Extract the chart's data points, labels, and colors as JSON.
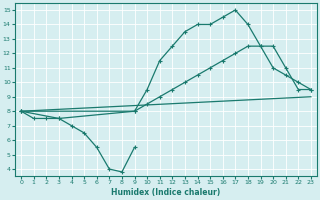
{
  "xlabel": "Humidex (Indice chaleur)",
  "background_color": "#d6eef0",
  "line_color": "#1a7a6e",
  "xlim": [
    -0.5,
    23.5
  ],
  "ylim": [
    3.5,
    15.5
  ],
  "xticks": [
    0,
    1,
    2,
    3,
    4,
    5,
    6,
    7,
    8,
    9,
    10,
    11,
    12,
    13,
    14,
    15,
    16,
    17,
    18,
    19,
    20,
    21,
    22,
    23
  ],
  "yticks": [
    4,
    5,
    6,
    7,
    8,
    9,
    10,
    11,
    12,
    13,
    14,
    15
  ],
  "line1_x": [
    0,
    1,
    2,
    3,
    4,
    5,
    6,
    7,
    8,
    9
  ],
  "line1_y": [
    8,
    7.5,
    7.5,
    7.5,
    7,
    6.5,
    5.5,
    4,
    3.8,
    5.5
  ],
  "line2_x": [
    0,
    3,
    9,
    10,
    11,
    12,
    13,
    14,
    15,
    16,
    17,
    18,
    19,
    20,
    21,
    22,
    23
  ],
  "line2_y": [
    8,
    7.5,
    8,
    9.5,
    11.5,
    12.5,
    13.5,
    14,
    14,
    14.5,
    15,
    14,
    12.5,
    11,
    10.5,
    10,
    9.5
  ],
  "line3_x": [
    0,
    9,
    10,
    11,
    12,
    13,
    14,
    15,
    16,
    17,
    18,
    19,
    20,
    21,
    22,
    23
  ],
  "line3_y": [
    8,
    8,
    8.5,
    9,
    9.5,
    10,
    10.5,
    11,
    11.5,
    12,
    12.5,
    12.5,
    12.5,
    11,
    9.5,
    9.5
  ],
  "line4_x": [
    0,
    23
  ],
  "line4_y": [
    8,
    9
  ]
}
